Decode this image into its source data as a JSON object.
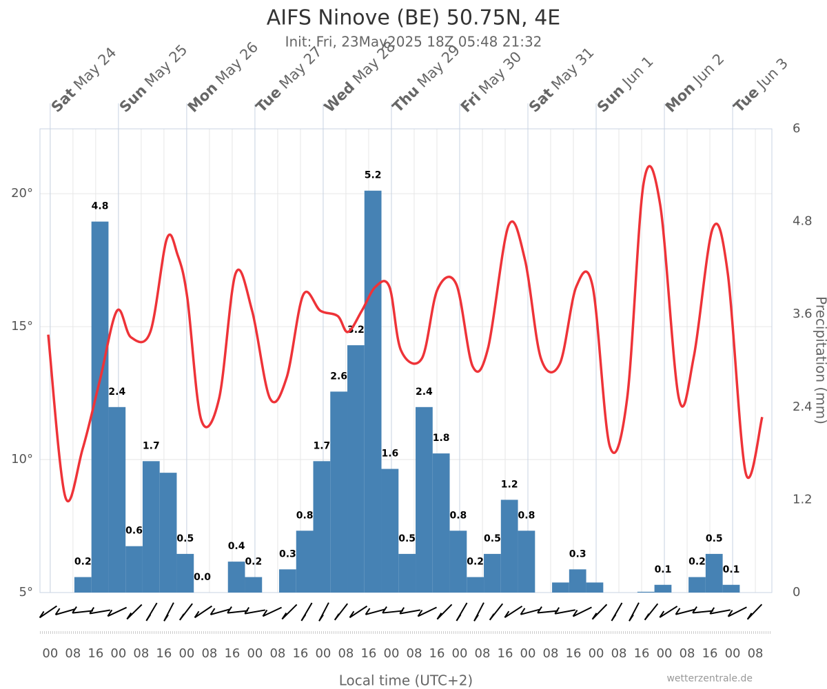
{
  "chart_data": {
    "type": "meteogram",
    "title": "AIFS Ninove (BE) 50.75N, 4E",
    "subtitle": "Init: Fri, 23May2025 18Z 05:48 21:32",
    "x_label": "Local time (UTC+2)",
    "y2_label": "Precipitation (mm)",
    "credit": "wetterzentrale.de",
    "xlim": [
      -3.6,
      253.8
    ],
    "xticks": [
      {
        "value": 0,
        "label": "00"
      },
      {
        "value": 8,
        "label": "08"
      },
      {
        "value": 16,
        "label": "16"
      },
      {
        "value": 24,
        "label": "00"
      },
      {
        "value": 32,
        "label": "08"
      },
      {
        "value": 40,
        "label": "16"
      },
      {
        "value": 48,
        "label": "00"
      },
      {
        "value": 56,
        "label": "08"
      },
      {
        "value": 64,
        "label": "16"
      },
      {
        "value": 72,
        "label": "00"
      },
      {
        "value": 80,
        "label": "08"
      },
      {
        "value": 88,
        "label": "16"
      },
      {
        "value": 96,
        "label": "00"
      },
      {
        "value": 104,
        "label": "08"
      },
      {
        "value": 112,
        "label": "16"
      },
      {
        "value": 120,
        "label": "00"
      },
      {
        "value": 128,
        "label": "08"
      },
      {
        "value": 136,
        "label": "16"
      },
      {
        "value": 144,
        "label": "00"
      },
      {
        "value": 152,
        "label": "08"
      },
      {
        "value": 160,
        "label": "16"
      },
      {
        "value": 168,
        "label": "00"
      },
      {
        "value": 176,
        "label": "08"
      },
      {
        "value": 184,
        "label": "16"
      },
      {
        "value": 192,
        "label": "00"
      },
      {
        "value": 200,
        "label": "08"
      },
      {
        "value": 208,
        "label": "16"
      },
      {
        "value": 216,
        "label": "00"
      },
      {
        "value": 224,
        "label": "08"
      },
      {
        "value": 232,
        "label": "16"
      },
      {
        "value": 240,
        "label": "00"
      },
      {
        "value": 248,
        "label": "08"
      }
    ],
    "days": [
      {
        "value": 0,
        "day": "Sat",
        "date": "May 24"
      },
      {
        "value": 24,
        "day": "Sun",
        "date": "May 25"
      },
      {
        "value": 48,
        "day": "Mon",
        "date": "May 26"
      },
      {
        "value": 72,
        "day": "Tue",
        "date": "May 27"
      },
      {
        "value": 96,
        "day": "Wed",
        "date": "May 28"
      },
      {
        "value": 120,
        "day": "Thu",
        "date": "May 29"
      },
      {
        "value": 144,
        "day": "Fri",
        "date": "May 30"
      },
      {
        "value": 168,
        "day": "Sat",
        "date": "May 31"
      },
      {
        "value": 192,
        "day": "Sun",
        "date": "Jun 1"
      },
      {
        "value": 216,
        "day": "Mon",
        "date": "Jun 2"
      },
      {
        "value": 240,
        "day": "Tue",
        "date": "Jun 3"
      }
    ],
    "ylim": [
      5,
      22.44
    ],
    "yticks": [
      {
        "value": 5,
        "label": "5°"
      },
      {
        "value": 10,
        "label": "10°"
      },
      {
        "value": 15,
        "label": "15°"
      },
      {
        "value": 20,
        "label": "20°"
      }
    ],
    "y2lim": [
      0,
      6
    ],
    "y2ticks": [
      0,
      1.2,
      2.4,
      3.6,
      4.8,
      6
    ],
    "grid": true,
    "series": [
      {
        "name": "Precipitation",
        "kind": "bar",
        "axis": "y2",
        "color": "#4682b4",
        "bar_hours": 6,
        "x": [
          11.5,
          17.5,
          23.5,
          29.5,
          35.5,
          41.5,
          47.5,
          53.5,
          59.5,
          65.5,
          71.5,
          77.5,
          83.5,
          89.5,
          95.5,
          101.5,
          107.5,
          113.5,
          119.5,
          125.5,
          131.5,
          137.5,
          143.5,
          149.5,
          155.5,
          161.5,
          167.5,
          173.5,
          179.5,
          185.5,
          191.5,
          197.5,
          203.5,
          209.5,
          215.5,
          221.5,
          227.5,
          233.5,
          239.5
        ],
        "values": [
          0.2,
          4.8,
          2.4,
          0.6,
          1.7,
          1.55,
          0.5,
          0,
          0,
          0.4,
          0.2,
          0,
          0.3,
          0.8,
          1.7,
          2.6,
          3.2,
          5.2,
          1.6,
          0.5,
          2.4,
          1.8,
          0.8,
          0.2,
          0.5,
          1.2,
          0.8,
          0,
          0.13,
          0.3,
          0.13,
          0,
          0,
          0.01,
          0.1,
          0,
          0.2,
          0.5,
          0.1
        ],
        "value_labels": [
          "0.2",
          "4.8",
          "2.4",
          "0.6",
          "1.7",
          null,
          "0.5",
          "0.0",
          null,
          "0.4",
          "0.2",
          null,
          "0.3",
          "0.8",
          "1.7",
          "2.6",
          "3.2",
          "5.2",
          "1.6",
          "0.5",
          "2.4",
          "1.8",
          "0.8",
          "0.2",
          "0.5",
          "1.2",
          "0.8",
          null,
          null,
          "0.3",
          null,
          null,
          null,
          null,
          "0.1",
          null,
          "0.2",
          "0.5",
          "0.1"
        ]
      },
      {
        "name": "Temperature",
        "kind": "line",
        "color": "#ee3338",
        "x": [
          -0.7,
          5.3,
          11.4,
          17.5,
          23.5,
          28.4,
          35.2,
          41,
          44.8,
          48.2,
          53.1,
          59.4,
          65.2,
          71,
          77.3,
          83.2,
          89,
          95,
          101.1,
          104.7,
          109.6,
          114.4,
          119.3,
          123.4,
          130.7,
          136.2,
          142.8,
          148.6,
          154,
          161.2,
          167,
          172.6,
          179.2,
          185,
          190.8,
          196.8,
          202.9,
          208.7,
          214.5,
          221.1,
          226.4,
          233,
          238.3,
          244.6,
          250.4
        ],
        "values": [
          14.7,
          8.6,
          10.4,
          13.0,
          15.6,
          14.6,
          14.8,
          18.3,
          17.7,
          16.1,
          11.5,
          12.3,
          17.0,
          15.6,
          12.3,
          13.1,
          16.2,
          15.6,
          15.4,
          14.8,
          15.6,
          16.5,
          16.5,
          14.1,
          13.8,
          16.4,
          16.6,
          13.5,
          14.2,
          18.8,
          17.5,
          13.8,
          13.6,
          16.5,
          16.5,
          10.5,
          12.3,
          20.4,
          19.6,
          12.3,
          13.9,
          18.7,
          17.0,
          9.5,
          11.6
        ]
      }
    ]
  }
}
